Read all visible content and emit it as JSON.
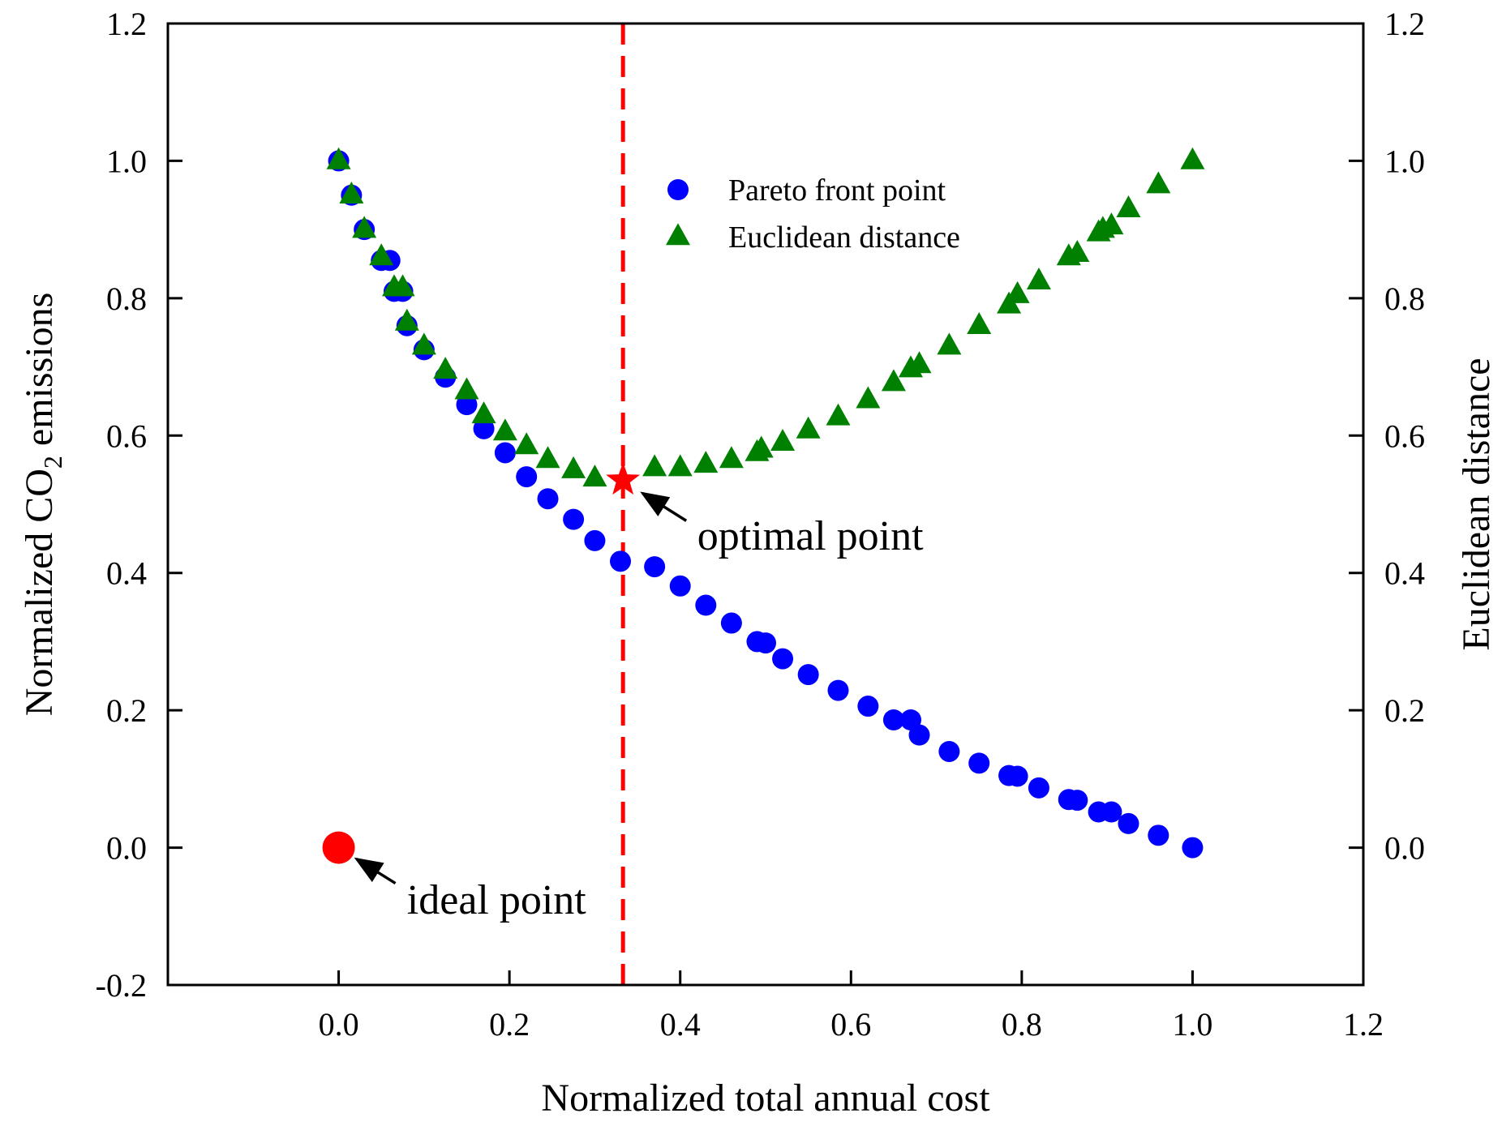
{
  "chart_data": {
    "type": "scatter",
    "title": "",
    "xlabel": "Normalized total annual cost",
    "ylabel_left_prefix": "Normalized CO",
    "ylabel_left_subscript": "2",
    "ylabel_left_suffix": " emissions",
    "ylabel_right": "Euclidean distance",
    "xlim": [
      -0.2,
      1.2
    ],
    "ylim": [
      -0.2,
      1.2
    ],
    "x_ticks": [
      0.0,
      0.2,
      0.4,
      0.6,
      0.8,
      1.0,
      1.2
    ],
    "x_tick_labels": [
      "0.0",
      "0.2",
      "0.4",
      "0.6",
      "0.8",
      "1.0",
      "1.2"
    ],
    "y_ticks": [
      -0.2,
      0.0,
      0.2,
      0.4,
      0.6,
      0.8,
      1.0,
      1.2
    ],
    "y_tick_labels": [
      "-0.2",
      "0.0",
      "0.2",
      "0.4",
      "0.6",
      "0.8",
      "1.0",
      "1.2"
    ],
    "y_right_ticks": [
      0.0,
      0.2,
      0.4,
      0.6,
      0.8,
      1.0,
      1.2
    ],
    "y_right_tick_labels": [
      "0.0",
      "0.2",
      "0.4",
      "0.6",
      "0.8",
      "1.0",
      "1.2"
    ],
    "legend": [
      "Pareto front point",
      "Euclidean distance"
    ],
    "legend_position": "top-center",
    "colors": {
      "pareto": "#0000ff",
      "euclid": "#008000",
      "highlight": "#ff0000"
    },
    "series": [
      {
        "name": "Pareto front point",
        "marker": "circle",
        "x": [
          0.0,
          0.015,
          0.03,
          0.05,
          0.06,
          0.065,
          0.075,
          0.08,
          0.1,
          0.125,
          0.15,
          0.17,
          0.195,
          0.22,
          0.245,
          0.275,
          0.3,
          0.33,
          0.37,
          0.4,
          0.43,
          0.46,
          0.49,
          0.5,
          0.52,
          0.55,
          0.585,
          0.62,
          0.65,
          0.67,
          0.68,
          0.715,
          0.75,
          0.785,
          0.795,
          0.82,
          0.855,
          0.865,
          0.89,
          0.905,
          0.925,
          0.96,
          1.0
        ],
        "y": [
          1.0,
          0.95,
          0.9,
          0.855,
          0.855,
          0.81,
          0.81,
          0.76,
          0.725,
          0.685,
          0.645,
          0.61,
          0.575,
          0.54,
          0.508,
          0.478,
          0.447,
          0.417,
          0.409,
          0.381,
          0.353,
          0.327,
          0.3,
          0.298,
          0.275,
          0.252,
          0.229,
          0.206,
          0.186,
          0.186,
          0.164,
          0.14,
          0.123,
          0.105,
          0.104,
          0.087,
          0.07,
          0.069,
          0.052,
          0.052,
          0.035,
          0.018,
          0.0
        ]
      },
      {
        "name": "Euclidean distance",
        "marker": "triangle",
        "x": [
          0.0,
          0.015,
          0.03,
          0.05,
          0.065,
          0.075,
          0.08,
          0.1,
          0.125,
          0.15,
          0.17,
          0.195,
          0.22,
          0.245,
          0.275,
          0.3,
          0.37,
          0.4,
          0.43,
          0.46,
          0.49,
          0.495,
          0.52,
          0.55,
          0.585,
          0.62,
          0.65,
          0.67,
          0.68,
          0.715,
          0.75,
          0.785,
          0.795,
          0.82,
          0.855,
          0.865,
          0.89,
          0.895,
          0.905,
          0.925,
          0.96,
          1.0
        ],
        "y": [
          1.0,
          0.95,
          0.9,
          0.86,
          0.815,
          0.815,
          0.765,
          0.73,
          0.695,
          0.665,
          0.63,
          0.605,
          0.585,
          0.565,
          0.55,
          0.538,
          0.553,
          0.553,
          0.558,
          0.565,
          0.575,
          0.58,
          0.59,
          0.608,
          0.627,
          0.652,
          0.677,
          0.697,
          0.703,
          0.73,
          0.76,
          0.79,
          0.805,
          0.825,
          0.86,
          0.865,
          0.895,
          0.9,
          0.905,
          0.93,
          0.965,
          1.0
        ]
      }
    ],
    "vertical_line": {
      "x": 0.333,
      "style": "dashed",
      "color": "#ff0000"
    },
    "annotations": [
      {
        "name": "optimal-point",
        "label": "optimal point",
        "marker": "star",
        "x": 0.333,
        "y": 0.535,
        "text_x": 0.42,
        "text_y": 0.455
      },
      {
        "name": "ideal-point",
        "label": "ideal point",
        "marker": "circle",
        "x": 0.0,
        "y": 0.0,
        "text_x": 0.08,
        "text_y": -0.075
      }
    ]
  }
}
